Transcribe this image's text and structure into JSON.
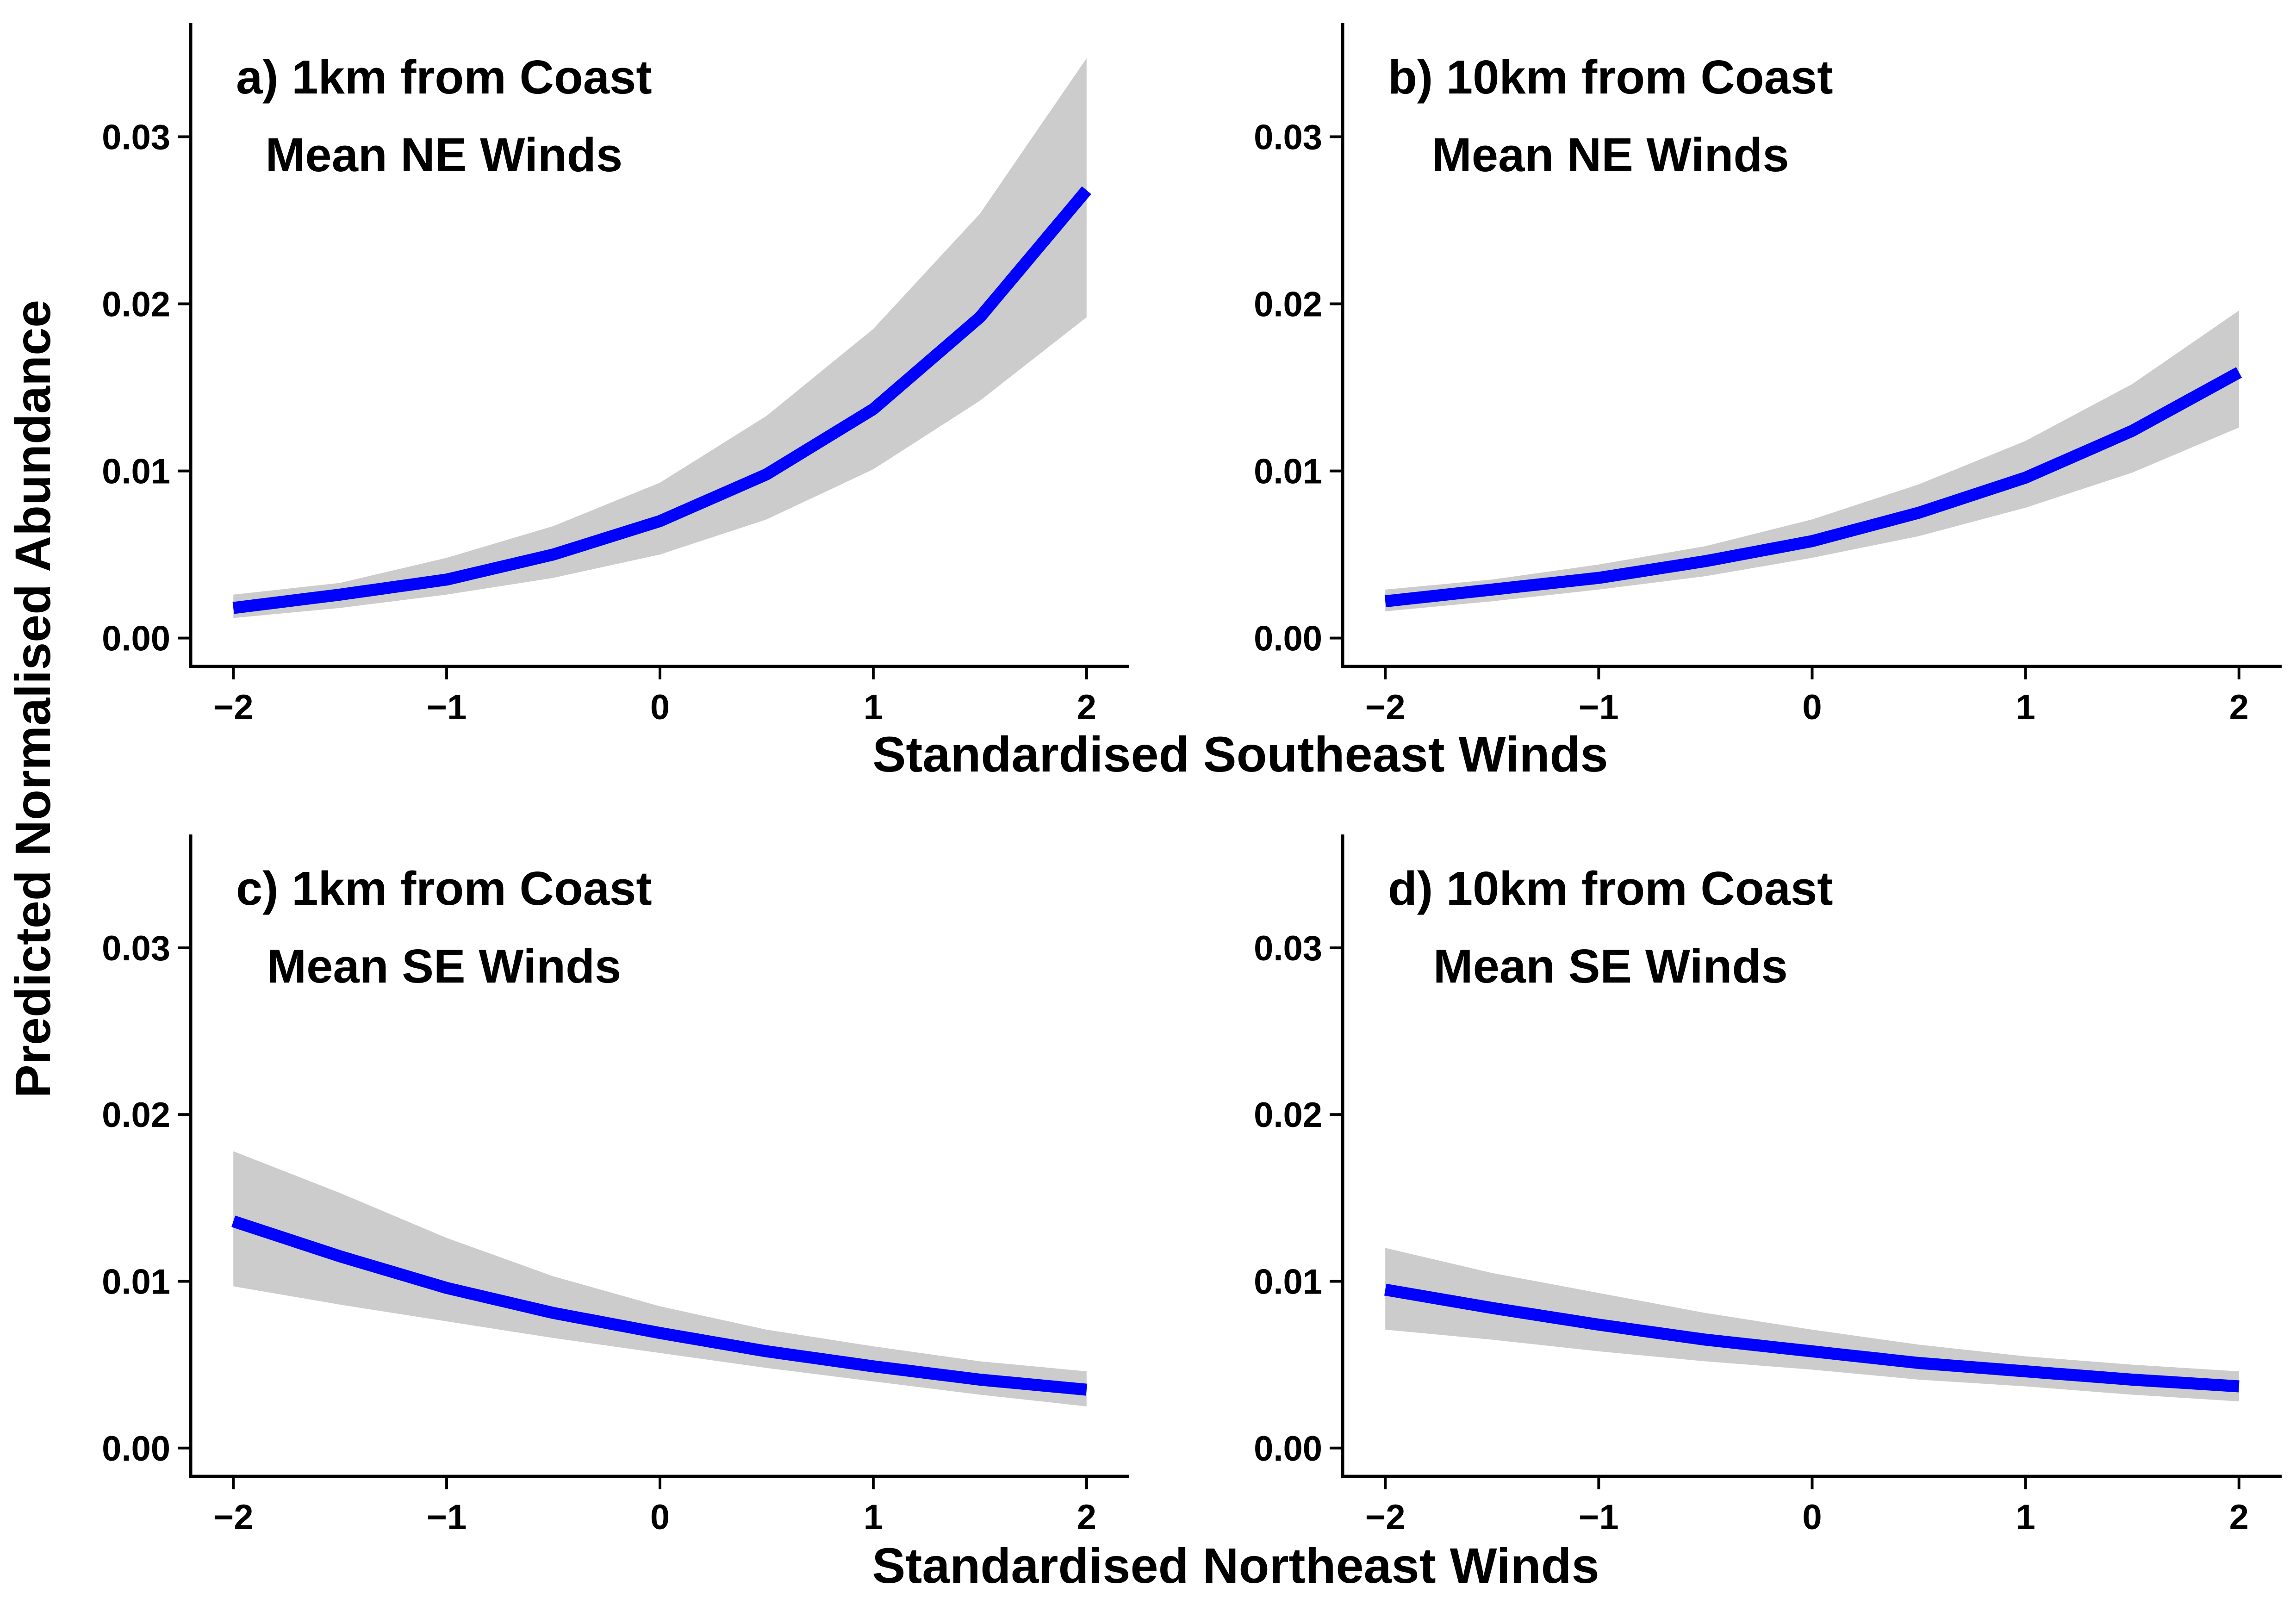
{
  "figure": {
    "y_axis_label": "Predicted Normalised Abundance",
    "x_axis_label_top": "Standardised Southeast Winds",
    "x_axis_label_bottom": "Standardised Northeast Winds"
  },
  "colors": {
    "line": "#0000ff",
    "ribbon": "#cccccc",
    "axis": "#000000"
  },
  "chart_data": [
    {
      "type": "line",
      "panel": "a",
      "title_line1": "a) 1km from Coast",
      "title_line2": "Mean NE Winds",
      "xlabel": "Standardised Southeast Winds",
      "ylabel": "Predicted Normalised Abundance",
      "xlim": [
        -2.2,
        2.2
      ],
      "ylim": [
        -0.0017,
        0.0368
      ],
      "xticks": [
        -2,
        -1,
        0,
        1,
        2
      ],
      "xtick_labels": [
        "−2",
        "−1",
        "0",
        "1",
        "2"
      ],
      "yticks": [
        0,
        0.01,
        0.02,
        0.03
      ],
      "ytick_labels": [
        "0.00",
        "0.01",
        "0.02",
        "0.03"
      ],
      "x": [
        -2,
        -1.5,
        -1,
        -0.5,
        0,
        0.5,
        1,
        1.5,
        2
      ],
      "y": [
        0.0018,
        0.0026,
        0.0035,
        0.005,
        0.007,
        0.0098,
        0.0137,
        0.0192,
        0.0268
      ],
      "lower": [
        0.0012,
        0.0018,
        0.0026,
        0.0036,
        0.005,
        0.0071,
        0.0101,
        0.0142,
        0.0192
      ],
      "upper": [
        0.0026,
        0.0033,
        0.0048,
        0.0067,
        0.0093,
        0.0133,
        0.0185,
        0.0254,
        0.0347
      ]
    },
    {
      "type": "line",
      "panel": "b",
      "title_line1": "b) 10km from Coast",
      "title_line2": "Mean NE Winds",
      "xlabel": "Standardised Southeast Winds",
      "ylabel": "Predicted Normalised Abundance",
      "xlim": [
        -2.2,
        2.2
      ],
      "ylim": [
        -0.0017,
        0.0368
      ],
      "xticks": [
        -2,
        -1,
        0,
        1,
        2
      ],
      "xtick_labels": [
        "−2",
        "−1",
        "0",
        "1",
        "2"
      ],
      "yticks": [
        0,
        0.01,
        0.02,
        0.03
      ],
      "ytick_labels": [
        "0.00",
        "0.01",
        "0.02",
        "0.03"
      ],
      "x": [
        -2,
        -1.5,
        -1,
        -0.5,
        0,
        0.5,
        1,
        1.5,
        2
      ],
      "y": [
        0.0022,
        0.0029,
        0.0036,
        0.0046,
        0.0058,
        0.0075,
        0.0096,
        0.0124,
        0.0159
      ],
      "lower": [
        0.0016,
        0.0022,
        0.0029,
        0.0037,
        0.0048,
        0.0061,
        0.0078,
        0.0099,
        0.0126
      ],
      "upper": [
        0.0029,
        0.0035,
        0.0044,
        0.0055,
        0.0071,
        0.0092,
        0.0118,
        0.0152,
        0.0196
      ]
    },
    {
      "type": "line",
      "panel": "c",
      "title_line1": "c) 1km from Coast",
      "title_line2": "Mean SE Winds",
      "xlabel": "Standardised Northeast Winds",
      "ylabel": "Predicted Normalised Abundance",
      "xlim": [
        -2.2,
        2.2
      ],
      "ylim": [
        -0.0017,
        0.0368
      ],
      "xticks": [
        -2,
        -1,
        0,
        1,
        2
      ],
      "xtick_labels": [
        "−2",
        "−1",
        "0",
        "1",
        "2"
      ],
      "yticks": [
        0,
        0.01,
        0.02,
        0.03
      ],
      "ytick_labels": [
        "0.00",
        "0.01",
        "0.02",
        "0.03"
      ],
      "x": [
        -2,
        -1.5,
        -1,
        -0.5,
        0,
        0.5,
        1,
        1.5,
        2
      ],
      "y": [
        0.0136,
        0.0115,
        0.0096,
        0.0081,
        0.0069,
        0.0058,
        0.0049,
        0.0041,
        0.0035
      ],
      "lower": [
        0.0097,
        0.0086,
        0.0076,
        0.0066,
        0.0057,
        0.0048,
        0.004,
        0.0032,
        0.0025
      ],
      "upper": [
        0.0178,
        0.0153,
        0.0126,
        0.0103,
        0.0085,
        0.0071,
        0.0061,
        0.0052,
        0.0046
      ]
    },
    {
      "type": "line",
      "panel": "d",
      "title_line1": "d) 10km from Coast",
      "title_line2": "Mean SE Winds",
      "xlabel": "Standardised Northeast Winds",
      "ylabel": "Predicted Normalised Abundance",
      "xlim": [
        -2.2,
        2.2
      ],
      "ylim": [
        -0.0017,
        0.0368
      ],
      "xticks": [
        -2,
        -1,
        0,
        1,
        2
      ],
      "xtick_labels": [
        "−2",
        "−1",
        "0",
        "1",
        "2"
      ],
      "yticks": [
        0,
        0.01,
        0.02,
        0.03
      ],
      "ytick_labels": [
        "0.00",
        "0.01",
        "0.02",
        "0.03"
      ],
      "x": [
        -2,
        -1.5,
        -1,
        -0.5,
        0,
        0.5,
        1,
        1.5,
        2
      ],
      "y": [
        0.0095,
        0.0084,
        0.0074,
        0.0065,
        0.0058,
        0.0051,
        0.0046,
        0.0041,
        0.0037
      ],
      "lower": [
        0.0071,
        0.0065,
        0.0058,
        0.0052,
        0.0047,
        0.0041,
        0.0037,
        0.0032,
        0.0028
      ],
      "upper": [
        0.012,
        0.0105,
        0.0093,
        0.0081,
        0.0071,
        0.0062,
        0.0055,
        0.005,
        0.0046
      ]
    }
  ]
}
